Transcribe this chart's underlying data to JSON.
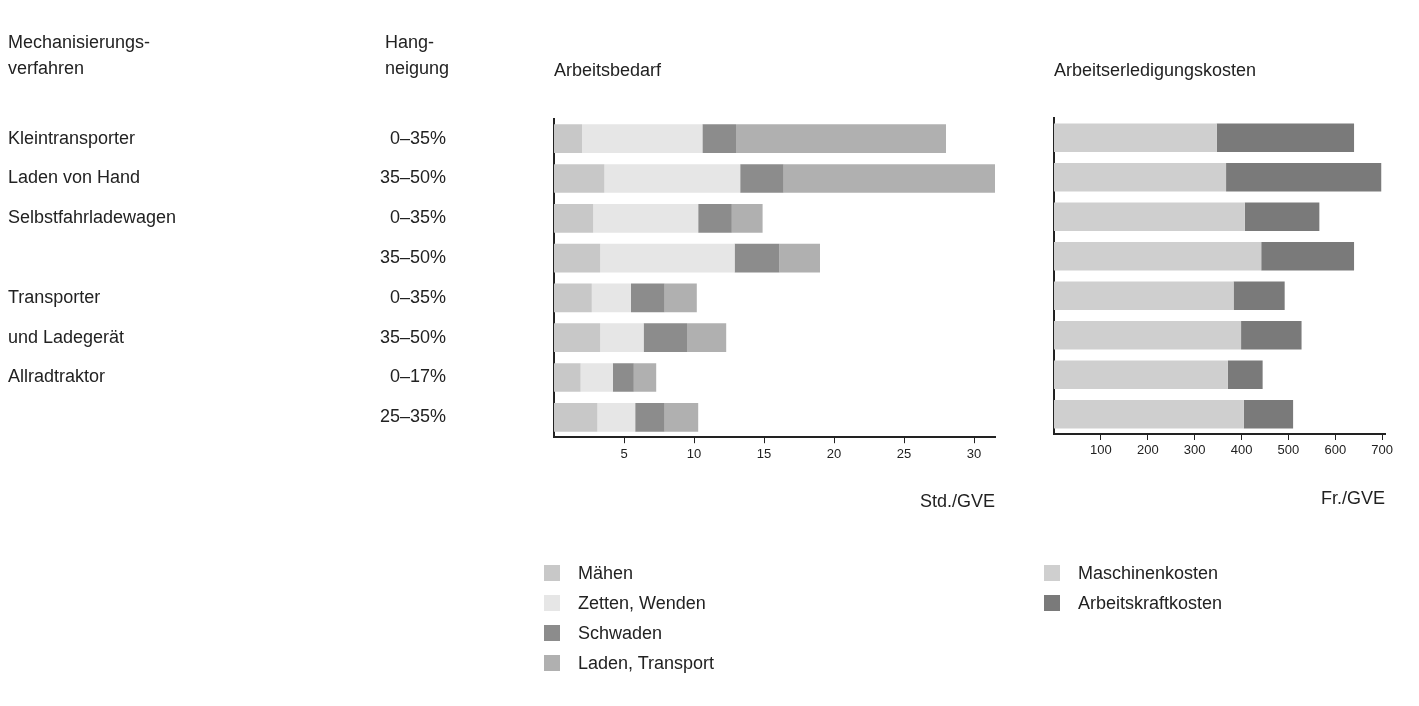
{
  "chart_data": [
    {
      "type": "bar",
      "title": "Arbeitsbedarf",
      "xlabel": "Std./GVE",
      "orientation": "horizontal",
      "stacked": true,
      "legend": "bottom left",
      "categories": [
        "0–35%",
        "35–50%",
        "0–35%",
        "35–50%",
        "0–35%",
        "35–50%",
        "0–17%",
        "25–35%"
      ],
      "series": [
        {
          "name": "Mähen",
          "color": "#c8c8c8",
          "values": [
            2.0,
            3.6,
            2.8,
            3.3,
            2.7,
            3.3,
            1.9,
            3.1
          ]
        },
        {
          "name": "Zetten, Wenden",
          "color": "#e6e6e6",
          "values": [
            8.6,
            9.7,
            7.5,
            9.6,
            2.8,
            3.1,
            2.3,
            2.7
          ]
        },
        {
          "name": "Schwaden",
          "color": "#8c8c8c",
          "values": [
            2.4,
            3.1,
            2.4,
            3.2,
            2.4,
            3.1,
            1.5,
            2.1
          ]
        },
        {
          "name": "Laden, Transport",
          "color": "#b0b0b0",
          "values": [
            15.0,
            15.1,
            2.2,
            2.9,
            2.3,
            2.8,
            1.6,
            2.4
          ]
        }
      ],
      "xlim": [
        0,
        31.5
      ],
      "xticks": [
        5,
        10,
        15,
        20,
        25,
        30
      ],
      "annotations": [
        "Mechanisierungs-\nverfahren",
        "Hang-\nneigung",
        "Kleintransporter\nLaden von Hand",
        "Selbstfahrladewagen",
        "Transporter\nund Ladegerät",
        "Allradtraktor"
      ]
    },
    {
      "type": "bar",
      "title": "Arbeitserledigungskosten",
      "xlabel": "Fr./GVE",
      "orientation": "horizontal",
      "stacked": true,
      "legend": "bottom left",
      "tick_labels": "x",
      "categories": [
        null,
        null,
        null,
        null,
        null,
        null,
        null,
        null
      ],
      "series": [
        {
          "name": "Maschinenkosten",
          "color": "#cfcfcf",
          "values": [
            347,
            367,
            407,
            442,
            383,
            399,
            371,
            405
          ]
        },
        {
          "name": "Arbeitskraftkosten",
          "color": "#7a7a7a",
          "values": [
            293,
            331,
            159,
            198,
            109,
            129,
            74,
            105
          ]
        }
      ],
      "xlim": [
        0,
        706
      ],
      "xticks": [
        100,
        200,
        300,
        400,
        500,
        600,
        700
      ]
    }
  ]
}
